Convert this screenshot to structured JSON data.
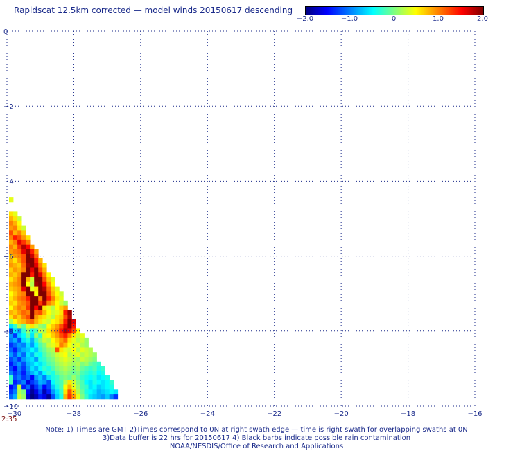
{
  "title": "Rapidscat 12.5km corrected — model winds 20150617 descending",
  "colorbar": {
    "labels": [
      "−2.0",
      "−1.0",
      "0",
      "1.0",
      "2.0"
    ],
    "range": [
      -2.0,
      2.0
    ],
    "colors": [
      "#00007f",
      "#0000ff",
      "#007fff",
      "#00ffff",
      "#7fff7f",
      "#ffff00",
      "#ff7f00",
      "#ff0000",
      "#7f0000"
    ]
  },
  "time_label": "2:35",
  "footer": {
    "line1": "Note: 1) Times are GMT 2)Times correspond to 0N at right swath edge — time is right swath for overlapping swaths at 0N",
    "line2": "3)Data buffer is 22 hrs for 20150617 4) Black barbs indicate possible rain contamination",
    "line3": "NOAA/NESDIS/Office of Research and Applications"
  },
  "chart_data": {
    "type": "heatmap",
    "title": "Rapidscat 12.5km corrected — model winds 20150617 descending",
    "xlabel": "",
    "ylabel": "",
    "xlim": [
      -30,
      -16
    ],
    "ylim": [
      -10,
      0
    ],
    "y_inverted": true,
    "grid": true,
    "x_ticks": [
      -30,
      -28,
      -26,
      -24,
      -22,
      -20,
      -18,
      -16
    ],
    "x_tick_labels": [
      "−30",
      "−28",
      "−26",
      "−24",
      "−22",
      "−20",
      "−18",
      "−16"
    ],
    "y_ticks": [
      0,
      -2,
      -4,
      -6,
      -8,
      -10
    ],
    "y_tick_labels": [
      "0",
      "−2",
      "−4",
      "−6",
      "−8",
      "−10"
    ],
    "cell_size_deg": 0.125,
    "value_range": [
      -2.0,
      2.0
    ],
    "rows": [
      {
        "lat": -4.5,
        "lon0": -29.875,
        "values": [
          0.4
        ]
      },
      {
        "lat": -4.875,
        "lon0": -29.875,
        "values": [
          0.6,
          0.4
        ]
      },
      {
        "lat": -5.0,
        "lon0": -29.875,
        "values": [
          0.8,
          0.6,
          0.3
        ]
      },
      {
        "lat": -5.125,
        "lon0": -29.875,
        "values": [
          1.0,
          0.8,
          0.5
        ]
      },
      {
        "lat": -5.25,
        "lon0": -29.875,
        "values": [
          0.9,
          1.0,
          0.6,
          0.3
        ]
      },
      {
        "lat": -5.375,
        "lon0": -29.875,
        "values": [
          1.2,
          0.8,
          1.0,
          0.7
        ]
      },
      {
        "lat": -5.5,
        "lon0": -29.875,
        "values": [
          1.0,
          1.4,
          1.2,
          0.9,
          0.6
        ]
      },
      {
        "lat": -5.625,
        "lon0": -29.875,
        "values": [
          0.8,
          1.0,
          1.6,
          1.3,
          1.0
        ]
      },
      {
        "lat": -5.75,
        "lon0": -29.875,
        "values": [
          1.0,
          0.8,
          1.3,
          1.8,
          1.5,
          0.9
        ]
      },
      {
        "lat": -5.875,
        "lon0": -29.875,
        "values": [
          0.9,
          1.0,
          1.1,
          1.6,
          1.9,
          1.4,
          0.9
        ]
      },
      {
        "lat": -6.0,
        "lon0": -29.875,
        "values": [
          0.7,
          0.9,
          1.0,
          1.2,
          2.0,
          1.7,
          1.1
        ]
      },
      {
        "lat": -6.125,
        "lon0": -29.875,
        "values": [
          0.8,
          0.6,
          0.9,
          1.2,
          2.0,
          2.0,
          1.4,
          0.8
        ]
      },
      {
        "lat": -6.25,
        "lon0": -29.875,
        "values": [
          0.9,
          0.8,
          0.7,
          1.1,
          1.9,
          2.0,
          1.6,
          1.0,
          0.6
        ]
      },
      {
        "lat": -6.375,
        "lon0": -29.875,
        "values": [
          0.7,
          0.9,
          0.8,
          1.0,
          2.0,
          1.6,
          2.0,
          1.2,
          0.8
        ]
      },
      {
        "lat": -6.5,
        "lon0": -29.875,
        "values": [
          0.8,
          0.7,
          0.9,
          2.0,
          2.0,
          1.4,
          2.0,
          1.6,
          1.0,
          0.5
        ]
      },
      {
        "lat": -6.625,
        "lon0": -29.875,
        "values": [
          0.6,
          0.8,
          1.0,
          2.0,
          0.8,
          0.3,
          2.0,
          2.0,
          1.2,
          0.7,
          0.4
        ]
      },
      {
        "lat": -6.75,
        "lon0": -29.875,
        "values": [
          0.8,
          0.9,
          1.0,
          2.0,
          0.5,
          0.2,
          1.9,
          2.0,
          1.5,
          0.9,
          0.5
        ]
      },
      {
        "lat": -6.875,
        "lon0": -29.875,
        "values": [
          0.7,
          0.8,
          0.9,
          1.6,
          2.0,
          0.4,
          0.6,
          2.0,
          1.8,
          1.1,
          0.7,
          0.4
        ]
      },
      {
        "lat": -7.0,
        "lon0": -29.875,
        "values": [
          0.5,
          0.7,
          0.9,
          1.0,
          2.0,
          2.0,
          0.5,
          2.0,
          2.0,
          1.2,
          0.8,
          0.5,
          0.3
        ]
      },
      {
        "lat": -7.125,
        "lon0": -29.875,
        "values": [
          0.6,
          0.8,
          1.0,
          1.1,
          1.4,
          2.0,
          2.0,
          1.0,
          2.0,
          1.4,
          1.0,
          0.6,
          0.4
        ]
      },
      {
        "lat": -7.25,
        "lon0": -29.875,
        "values": [
          0.7,
          0.6,
          0.9,
          1.0,
          1.2,
          2.0,
          2.0,
          1.3,
          1.8,
          1.0,
          0.8,
          0.5,
          0.3,
          0.1
        ]
      },
      {
        "lat": -7.375,
        "lon0": -29.875,
        "values": [
          0.5,
          0.8,
          1.0,
          0.9,
          1.3,
          2.0,
          1.5,
          2.0,
          0.6,
          0.4,
          0.2,
          0.5,
          0.7,
          0.9
        ]
      },
      {
        "lat": -7.5,
        "lon0": -29.875,
        "values": [
          0.8,
          0.7,
          0.9,
          1.1,
          1.0,
          2.0,
          1.1,
          1.2,
          0.8,
          0.5,
          0.3,
          0.4,
          0.6,
          1.4,
          1.9
        ]
      },
      {
        "lat": -7.625,
        "lon0": -29.875,
        "values": [
          0.6,
          0.9,
          0.7,
          1.0,
          1.2,
          2.0,
          0.9,
          0.7,
          0.6,
          0.4,
          0.2,
          0.6,
          0.7,
          1.2,
          1.8
        ]
      },
      {
        "lat": -7.75,
        "lon0": -29.875,
        "values": [
          0.2,
          0.5,
          0.7,
          0.8,
          1.0,
          1.1,
          0.8,
          0.6,
          0.4,
          0.3,
          0.5,
          0.6,
          0.8,
          1.4,
          2.0,
          1.6
        ]
      },
      {
        "lat": -7.875,
        "lon0": -29.875,
        "values": [
          -0.6,
          -0.3,
          0.2,
          -0.1,
          0.4,
          0.6,
          0.3,
          0.1,
          0.0,
          0.5,
          0.7,
          0.9,
          1.2,
          1.6,
          2.0,
          1.4
        ]
      },
      {
        "lat": -8.0,
        "lon0": -29.875,
        "values": [
          -1.2,
          -0.6,
          -0.9,
          -0.3,
          0.1,
          -0.4,
          -0.2,
          0.3,
          0.2,
          0.6,
          0.8,
          1.0,
          1.4,
          1.8,
          1.6,
          1.2,
          0.5
        ]
      },
      {
        "lat": -8.125,
        "lon0": -29.875,
        "values": [
          -0.9,
          -1.3,
          -0.7,
          -0.5,
          -0.1,
          -0.6,
          0.1,
          -0.3,
          0.4,
          0.5,
          0.7,
          0.9,
          1.2,
          1.4,
          1.0,
          0.6,
          0.3,
          0.4
        ]
      },
      {
        "lat": -8.25,
        "lon0": -29.875,
        "values": [
          -1.0,
          -0.8,
          -1.2,
          -0.6,
          -0.4,
          -0.8,
          -0.3,
          0.0,
          0.3,
          0.2,
          0.5,
          0.7,
          0.9,
          1.1,
          0.6,
          0.4,
          0.2,
          0.3,
          0.1
        ]
      },
      {
        "lat": -8.375,
        "lon0": -29.875,
        "values": [
          -1.3,
          -1.1,
          -0.9,
          -1.0,
          -0.6,
          -0.9,
          -0.5,
          -0.2,
          0.0,
          0.3,
          0.4,
          0.6,
          1.0,
          0.8,
          0.5,
          0.3,
          0.4,
          0.2,
          0.1
        ]
      },
      {
        "lat": -8.5,
        "lon0": -29.875,
        "values": [
          -1.1,
          -1.4,
          -1.0,
          -0.8,
          -0.7,
          -0.5,
          -0.7,
          -0.3,
          -0.1,
          0.1,
          0.2,
          1.2,
          0.6,
          0.4,
          0.3,
          0.5,
          0.2,
          0.4,
          0.3,
          0.2
        ]
      },
      {
        "lat": -8.625,
        "lon0": -29.875,
        "values": [
          -0.9,
          -1.2,
          -0.8,
          -1.1,
          -0.6,
          -0.8,
          -0.4,
          -0.5,
          -0.2,
          0.0,
          0.1,
          0.3,
          0.4,
          0.5,
          0.2,
          0.3,
          0.4,
          0.2,
          0.3,
          0.2,
          0.1
        ]
      },
      {
        "lat": -8.75,
        "lon0": -29.875,
        "values": [
          -1.2,
          -1.0,
          -1.3,
          -0.9,
          -0.7,
          -0.6,
          -0.9,
          -0.4,
          -0.3,
          -0.1,
          0.0,
          0.2,
          0.3,
          0.4,
          0.3,
          0.2,
          0.1,
          0.3,
          0.2,
          0.1,
          0.0
        ]
      },
      {
        "lat": -8.875,
        "lon0": -29.875,
        "values": [
          -1.4,
          -1.1,
          -0.9,
          -1.2,
          -0.8,
          -0.7,
          -0.5,
          -0.6,
          -0.4,
          -0.2,
          -0.1,
          0.1,
          0.2,
          0.3,
          0.2,
          0.1,
          0.2,
          0.0,
          0.1,
          -0.1,
          -0.2,
          -0.3
        ]
      },
      {
        "lat": -9.0,
        "lon0": -29.875,
        "values": [
          -1.2,
          -1.5,
          -1.0,
          -1.3,
          -0.9,
          -0.6,
          -0.8,
          -0.5,
          -0.3,
          -0.4,
          -0.2,
          0.0,
          0.1,
          0.2,
          0.1,
          0.0,
          0.1,
          -0.1,
          -0.2,
          -0.3,
          -0.2,
          -0.4,
          -0.3
        ]
      },
      {
        "lat": -9.125,
        "lon0": -29.875,
        "values": [
          -1.0,
          -1.3,
          -1.1,
          -1.4,
          -1.0,
          -0.8,
          -0.6,
          -0.9,
          -0.5,
          -0.3,
          -0.4,
          -0.1,
          0.0,
          0.1,
          0.0,
          -0.1,
          0.0,
          -0.2,
          -0.3,
          -0.4,
          -0.3,
          -0.5,
          -0.4
        ]
      },
      {
        "lat": -9.25,
        "lon0": -29.875,
        "values": [
          -0.3,
          -1.2,
          -1.0,
          -1.3,
          -1.1,
          -1.5,
          -0.9,
          -0.7,
          -1.0,
          -0.6,
          -0.4,
          -0.3,
          -0.1,
          0.0,
          -0.1,
          0.1,
          -0.1,
          -0.3,
          -0.4,
          -0.5,
          -0.4,
          -0.6,
          -0.5,
          -0.4
        ]
      },
      {
        "lat": -9.375,
        "lon0": -29.875,
        "values": [
          -0.2,
          -1.4,
          -1.2,
          -1.0,
          -1.6,
          -1.3,
          -1.1,
          -0.8,
          -0.9,
          -1.2,
          -0.5,
          -0.3,
          -0.2,
          0.2,
          0.6,
          0.3,
          0.0,
          -0.2,
          -0.5,
          -0.6,
          -0.4,
          -0.5,
          -0.6,
          -0.5,
          -0.3
        ]
      },
      {
        "lat": -9.5,
        "lon0": -29.875,
        "values": [
          -1.5,
          -1.2,
          0.3,
          -1.4,
          -1.1,
          -1.7,
          -1.3,
          -1.0,
          -1.5,
          -1.2,
          -0.7,
          -0.4,
          -0.2,
          0.5,
          0.8,
          0.4,
          0.1,
          -0.2,
          -0.3,
          -0.6,
          -0.5,
          -0.7,
          -0.6,
          -0.5,
          -0.4
        ]
      },
      {
        "lat": -9.625,
        "lon0": -29.875,
        "values": [
          -1.3,
          -1.0,
          0.2,
          0.0,
          -1.5,
          -1.9,
          -1.6,
          -1.2,
          -1.8,
          -1.4,
          -0.9,
          -0.6,
          -0.3,
          0.6,
          1.2,
          0.7,
          0.2,
          -0.1,
          -0.4,
          -0.5,
          -0.6,
          -0.8,
          -0.7,
          -0.6,
          -0.5,
          -0.6
        ]
      },
      {
        "lat": -9.75,
        "lon0": -29.875,
        "values": [
          -1.1,
          -0.8,
          0.3,
          0.1,
          -1.7,
          -2.0,
          -1.8,
          -1.4,
          -1.6,
          -1.9,
          -1.2,
          -0.7,
          -0.4,
          0.8,
          1.3,
          0.9,
          0.4,
          0.0,
          -0.3,
          -0.6,
          -0.7,
          -0.8,
          -0.9,
          -0.7,
          -1.0,
          -1.3
        ]
      }
    ]
  }
}
